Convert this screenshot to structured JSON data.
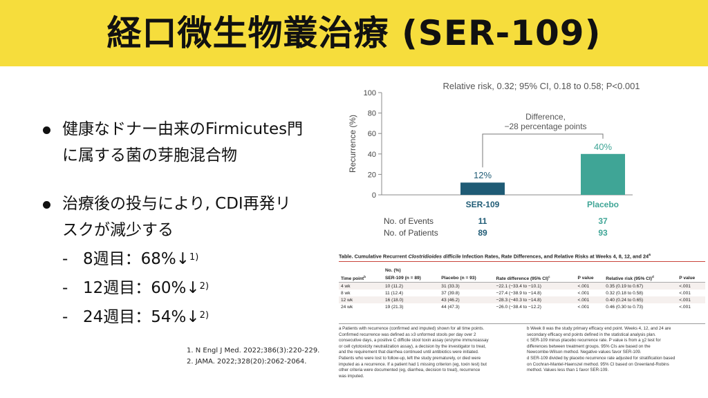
{
  "title": "経口微生物叢治療 (SER-109)",
  "bullets": [
    {
      "lines": [
        "健康なドナー由来のFirmicutes門",
        "に属する菌の芽胞混合物"
      ]
    },
    {
      "lines": [
        "治療後の投与により, CDI再発リ",
        "スクが減少する"
      ]
    }
  ],
  "subitems": [
    {
      "dash": "-",
      "text": "8週目：68%↓",
      "sup": "1)"
    },
    {
      "dash": "-",
      "text": "12週目：60%↓",
      "sup": "2)"
    },
    {
      "dash": "-",
      "text": "24週目：54%↓",
      "sup": "2)"
    }
  ],
  "references": [
    "1. N Engl J Med. 2022;386(3):220-229.",
    "2. JAMA. 2022;328(20):2062-2064."
  ],
  "chart_data": {
    "type": "bar",
    "title": "Relative risk, 0.32; 95% CI, 0.18 to 0.58; P<0.001",
    "ylabel": "Recurrence (%)",
    "ylim": [
      0,
      100
    ],
    "yticks": [
      "0",
      "20",
      "40",
      "60",
      "80",
      "100"
    ],
    "categories": [
      "SER-109",
      "Placebo"
    ],
    "values": [
      12,
      40
    ],
    "value_labels": [
      "12%",
      "40%"
    ],
    "colors": [
      "#1f5b75",
      "#3fa596"
    ],
    "annotation": [
      "Difference,",
      "−28 percentage points"
    ],
    "rows": [
      {
        "label": "No. of Events",
        "values": [
          "11",
          "37"
        ]
      },
      {
        "label": "No. of Patients",
        "values": [
          "89",
          "93"
        ]
      }
    ]
  },
  "table": {
    "title_plain": "Table. Cumulative Recurrent ",
    "title_italic": "Clostridioides difficile",
    "title_rest": " Infection Rates, Rate Differences, and Relative Risks at Weeks 4, 8, 12, and 24",
    "title_sup": "a",
    "no_header": "No. (%)",
    "columns": [
      "Time point",
      "SER-109 (n = 89)",
      "Placebo (n = 93)",
      "Rate difference (95% CI)",
      "P value",
      "Relative risk (95% CI)",
      "P value"
    ],
    "column_sups": [
      "b",
      "",
      "",
      "c",
      "",
      "d",
      ""
    ],
    "rows": [
      [
        "4 wk",
        "10 (11.2)",
        "31 (33.3)",
        "−22.1 (−33.4 to −10.1)",
        "<.001",
        "0.35 (0.19 to 0.67)",
        "<.001"
      ],
      [
        "8 wk",
        "11 (12.4)",
        "37 (39.8)",
        "−27.4 (−38.9 to −14.8)",
        "<.001",
        "0.32 (0.18 to 0.58)",
        "<.001"
      ],
      [
        "12 wk",
        "16 (18.0)",
        "43 (46.2)",
        "−28.3 (−40.3 to −14.8)",
        "<.001",
        "0.40 (0.24 to 0.65)",
        "<.001"
      ],
      [
        "24 wk",
        "19 (21.3)",
        "44 (47.3)",
        "−26.0 (−38.4 to −12.2)",
        "<.001",
        "0.46 (0.30 to 0.73)",
        "<.001"
      ]
    ],
    "footnotes_left": [
      "a Patients with recurrence (confirmed and imputed) shown for all time points.",
      "Confirmed recurrence was defined as ≥3 unformed stools per day over 2",
      "consecutive days, a positive C difficile stool toxin assay (enzyme immunoassay",
      "or cell cytotoxicity neutralization assay), a decision by the investigator to treat,",
      "and the requirement that diarrhea continued until antibiotics were initiated.",
      "Patients who were lost to follow-up, left the study prematurely, or died were",
      "imputed as a recurrence. If a patient had 1 missing criterion (eg, toxin test) but",
      "other criteria were documented (eg, diarrhea, decision to treat), recurrence",
      "was imputed."
    ],
    "footnotes_right": [
      "b Week 8 was the study primary efficacy end point. Weeks 4, 12, and 24 are",
      "secondary efficacy end points defined in the statistical analysis plan.",
      "c SER-109 minus placebo recurrence rate. P value is from a χ2 test for",
      "differences between treatment groups. 95% CIs are based on the",
      "Newcombe-Wilson method. Negative values favor SER-109.",
      "d SER-109 divided by placebo recurrence rate adjusted for stratification based",
      "on Cochran-Mantel-Haenszel method. 95% CI based on Greenland-Robins",
      "method. Values less than 1 favor SER-109."
    ]
  }
}
